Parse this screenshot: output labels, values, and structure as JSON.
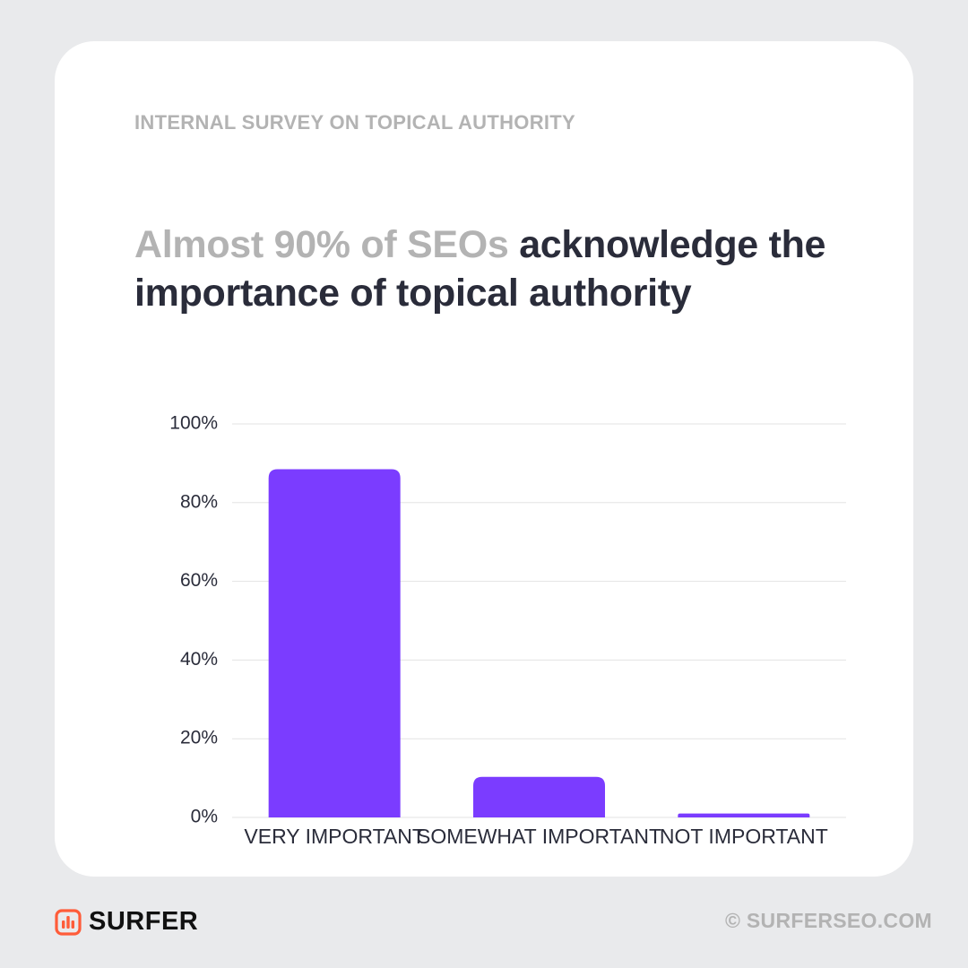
{
  "header": {
    "eyebrow": "INTERNAL SURVEY ON TOPICAL AUTHORITY",
    "headline_muted": "Almost 90% of SEOs",
    "headline_main": " acknowledge the importance of topical authority"
  },
  "chart_data": {
    "type": "bar",
    "categories": [
      "VERY IMPORTANT",
      "SOMEWHAT IMPORTANT",
      "NOT IMPORTANT"
    ],
    "values": [
      88.5,
      10.3,
      1
    ],
    "ylim": [
      0,
      100
    ],
    "yticks": [
      0,
      20,
      40,
      60,
      80,
      100
    ],
    "ytick_labels": [
      "0%",
      "20%",
      "40%",
      "60%",
      "80%",
      "100%"
    ],
    "xlabel": "",
    "ylabel": "",
    "grid": true,
    "bar_color": "#7b3cff",
    "grid_color": "#e3e3e3"
  },
  "footer": {
    "brand": "SURFER",
    "brand_color": "#ff5c39",
    "copyright": "© SURFERSEO.COM"
  }
}
